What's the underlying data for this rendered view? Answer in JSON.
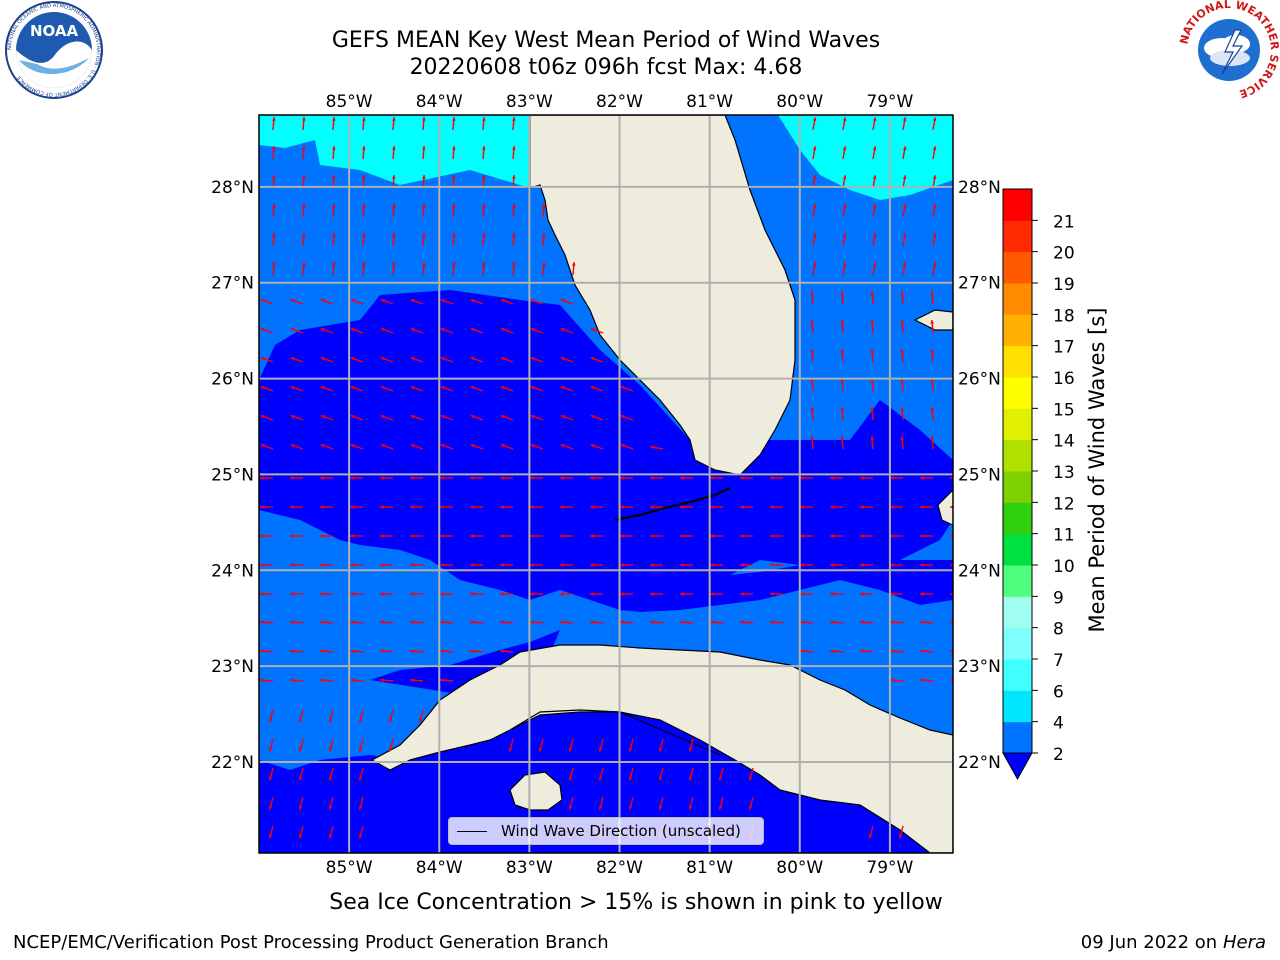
{
  "title": {
    "line1": "GEFS MEAN Key West Mean Period of Wind Waves",
    "line2": "20220608 t06z 096h fcst   Max: 4.68"
  },
  "logos": {
    "left": {
      "text": "NOAA",
      "ring_text": "NATIONAL OCEANIC AND ATMOSPHERIC ADMINISTRATION · U.S. DEPARTMENT OF COMMERCE"
    },
    "right": {
      "ring_text": "NATIONAL WEATHER SERVICE"
    }
  },
  "map": {
    "lon_labels": [
      "85°W",
      "84°W",
      "83°W",
      "82°W",
      "81°W",
      "80°W",
      "79°W"
    ],
    "lat_labels": [
      "28°N",
      "27°N",
      "26°N",
      "25°N",
      "24°N",
      "23°N",
      "22°N"
    ],
    "lon_range": [
      -86.0,
      -78.3
    ],
    "lat_range": [
      21.05,
      28.75
    ],
    "colors": {
      "land": "#eeecdc",
      "period_0_2": "#0000ff",
      "period_2_4": "#0073ff",
      "period_4_6": "#00ffff",
      "arrow": "#ff0000",
      "grid": "#b0b0b0",
      "coast": "#000000"
    },
    "legend_label": "Wind Wave Direction (unscaled)"
  },
  "colorbar": {
    "label": "Mean Period of Wind Waves [s]",
    "ticks": [
      "2",
      "4",
      "6",
      "7",
      "8",
      "9",
      "10",
      "11",
      "12",
      "13",
      "14",
      "15",
      "16",
      "17",
      "18",
      "19",
      "20",
      "21"
    ],
    "colors": [
      "#0073ff",
      "#00e6ff",
      "#40ffff",
      "#80ffff",
      "#a0fff0",
      "#50ff80",
      "#00e040",
      "#30d010",
      "#7ed000",
      "#b0e000",
      "#e0f000",
      "#ffff00",
      "#ffe000",
      "#ffb000",
      "#ff8c00",
      "#ff5a00",
      "#ff2a00",
      "#ff0000"
    ],
    "extend_color": "#0000ff"
  },
  "footer": {
    "subcaption": "Sea Ice Concentration > 15% is shown in pink to yellow",
    "left": "NCEP/EMC/Verification Post Processing Product Generation Branch",
    "right_date": "09 Jun 2022 on",
    "right_host": "Hera"
  }
}
